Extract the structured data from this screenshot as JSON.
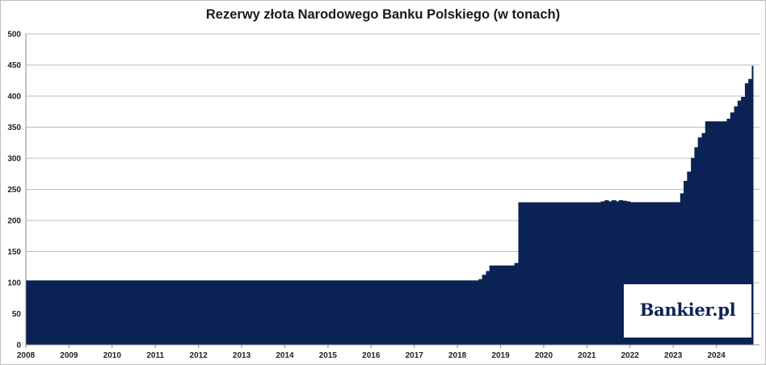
{
  "chart_data": {
    "type": "area",
    "title": "Rezerwy złota Narodowego Banku Polskiego (w tonach)",
    "xlabel": "",
    "ylabel": "",
    "ylim": [
      0,
      500
    ],
    "yticks": [
      0,
      50,
      100,
      150,
      200,
      250,
      300,
      350,
      400,
      450,
      500
    ],
    "xlim": [
      2008,
      2025
    ],
    "xticks": [
      "2008",
      "2009",
      "2010",
      "2011",
      "2012",
      "2013",
      "2014",
      "2015",
      "2016",
      "2017",
      "2018",
      "2019",
      "2020",
      "2021",
      "2022",
      "2023",
      "2024"
    ],
    "grid": true,
    "legend": "none",
    "fill_color": "#0b2354",
    "series": [
      {
        "x": [
          2008.0,
          2018.5,
          2018.58,
          2018.67,
          2018.75,
          2019.33,
          2019.42,
          2021.33,
          2021.42,
          2021.5,
          2021.58,
          2021.67,
          2021.75,
          2021.83,
          2021.92,
          2022.0,
          2023.17,
          2023.25,
          2023.33,
          2023.42,
          2023.5,
          2023.58,
          2023.67,
          2023.75,
          2023.83,
          2024.25,
          2024.33,
          2024.42,
          2024.5,
          2024.58,
          2024.67,
          2024.75,
          2024.83
        ],
        "y": [
          103.0,
          105.0,
          112.0,
          118.0,
          127.0,
          131.0,
          228.6,
          230.0,
          232.0,
          230.0,
          232.0,
          230.0,
          232.0,
          231.0,
          230.0,
          228.7,
          243.0,
          263.0,
          278.0,
          300.0,
          317.0,
          333.0,
          340.0,
          358.7,
          358.7,
          363.0,
          373.0,
          383.0,
          392.0,
          398.0,
          420.0,
          427.0,
          448.0
        ]
      }
    ]
  },
  "watermark": {
    "text": "Bankier.pl"
  }
}
